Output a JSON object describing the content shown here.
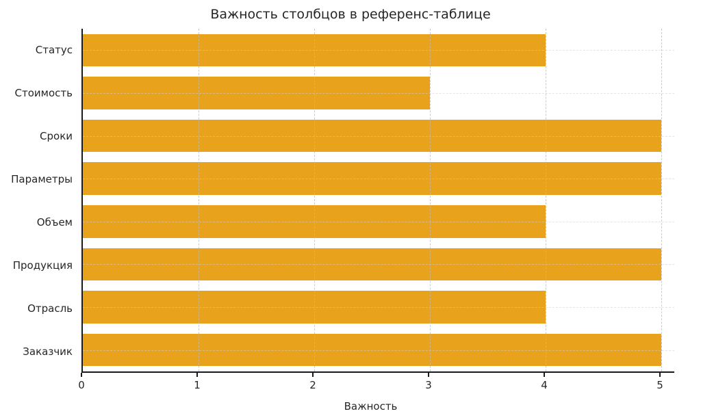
{
  "chart_data": {
    "type": "bar",
    "orientation": "horizontal",
    "title": "Важность столбцов в референс-таблице",
    "categories": [
      "Статус",
      "Стоимость",
      "Сроки",
      "Параметры",
      "Объем",
      "Продукция",
      "Отрасль",
      "Заказчик"
    ],
    "values": [
      4,
      3,
      5,
      5,
      4,
      5,
      4,
      5
    ],
    "xlabel": "Важность",
    "ylabel": "",
    "xlim": [
      0,
      5
    ],
    "xticks": [
      0,
      1,
      2,
      3,
      4,
      5
    ],
    "grid": true,
    "grid_style": "dashed",
    "legend": "none",
    "bar_color": "#E8A21C"
  },
  "colors": {
    "bar": "#E8A21C",
    "axis": "#1a1a1a",
    "grid": "#c8c8c8",
    "text": "#262626",
    "background": "#ffffff"
  }
}
